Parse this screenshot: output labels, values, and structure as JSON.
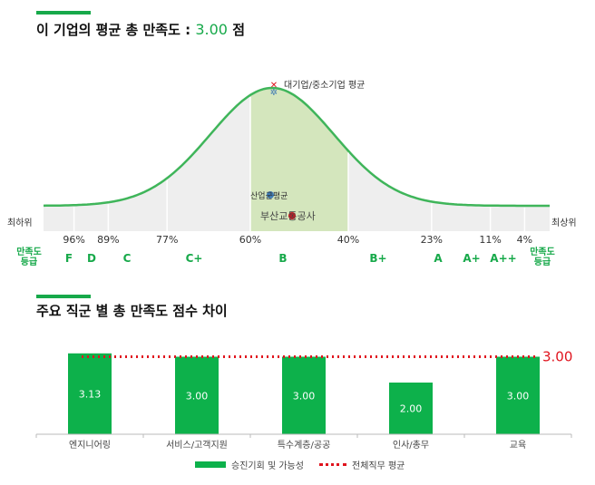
{
  "section1": {
    "title_prefix": "이 기업의 평균 총 만족도 : ",
    "score": "3.00",
    "title_suffix": " 점"
  },
  "section2": {
    "title": "주요 직군 별 총 만족도 점수 차이"
  },
  "colors": {
    "accent": "#17a94a",
    "bar": "#0db14b",
    "curve": "#3fb55a",
    "highlight": "#d4e6bd",
    "avg_line": "#e0141e",
    "industry_dot": "#3f7ab3",
    "company_dot": "#e0141e"
  },
  "chart_data": [
    {
      "type": "area",
      "markers": {
        "top_marker_label": "대기업/중소기업 평균",
        "industry_label": "산업군평균",
        "company_label": "부산교통공사"
      },
      "left_end_label": "최하위",
      "right_end_label": "최상위",
      "left_grade_caption": "만족도\n등급",
      "right_grade_caption": "만족도\n등급",
      "percentile_labels": [
        {
          "label": "96%",
          "pct": 96
        },
        {
          "label": "89%",
          "pct": 89
        },
        {
          "label": "77%",
          "pct": 77
        },
        {
          "label": "60%",
          "pct": 60
        },
        {
          "label": "40%",
          "pct": 40
        },
        {
          "label": "23%",
          "pct": 23
        },
        {
          "label": "11%",
          "pct": 11
        },
        {
          "label": "4%",
          "pct": 4
        }
      ],
      "grades": [
        "F",
        "D",
        "C",
        "C+",
        "B",
        "B+",
        "A",
        "A+",
        "A++"
      ]
    },
    {
      "type": "bar",
      "categories": [
        "엔지니어링",
        "서비스/고객지원",
        "특수계층/공공",
        "인사/총무",
        "교육"
      ],
      "series": [
        {
          "name": "승진기회 및 가능성",
          "values": [
            3.13,
            3.0,
            3.0,
            2.0,
            3.0
          ]
        }
      ],
      "value_labels": [
        "3.13",
        "3.00",
        "3.00",
        "2.00",
        "3.00"
      ],
      "reference_line": {
        "name": "전체직무 평균",
        "value": 3.0,
        "label": "3.00"
      },
      "ylim": [
        0,
        4
      ],
      "grid": false,
      "legend_position": "bottom"
    }
  ]
}
